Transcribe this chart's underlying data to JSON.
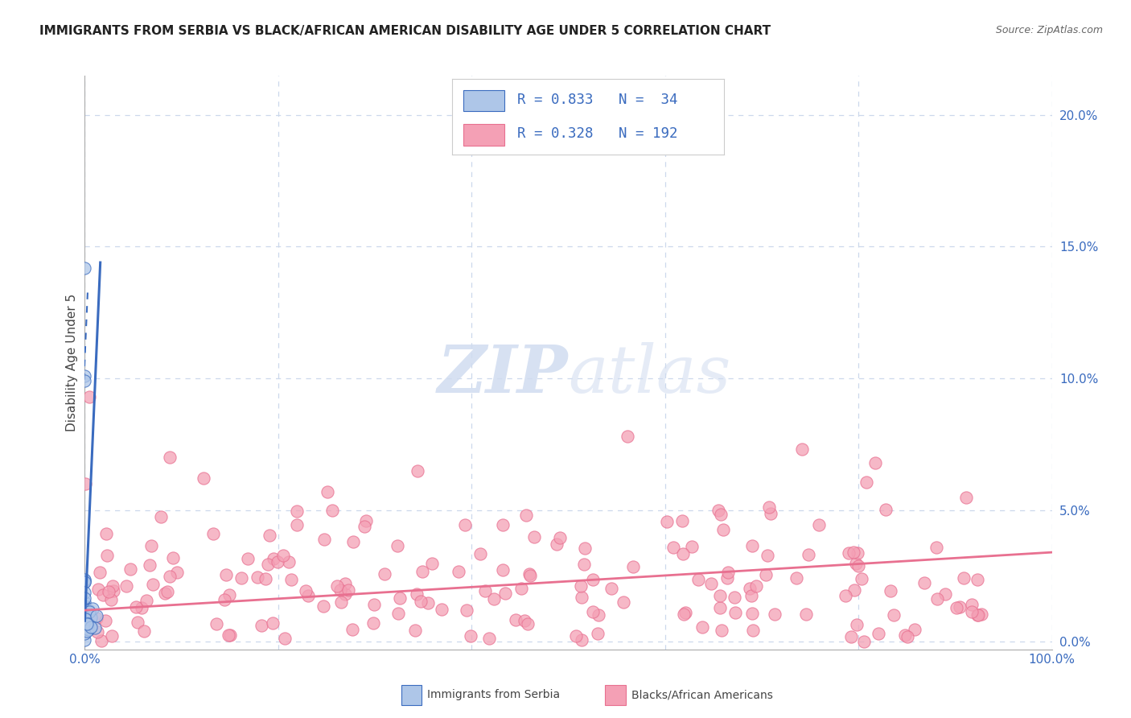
{
  "title": "IMMIGRANTS FROM SERBIA VS BLACK/AFRICAN AMERICAN DISABILITY AGE UNDER 5 CORRELATION CHART",
  "source": "Source: ZipAtlas.com",
  "ylabel": "Disability Age Under 5",
  "blue_R": 0.833,
  "blue_N": 34,
  "pink_R": 0.328,
  "pink_N": 192,
  "legend_label_blue": "Immigrants from Serbia",
  "legend_label_pink": "Blacks/African Americans",
  "blue_color": "#aec6e8",
  "pink_color": "#f4a0b5",
  "blue_line_color": "#3a6bbf",
  "pink_line_color": "#e87090",
  "label_color": "#3a6bbf",
  "background_color": "#ffffff",
  "grid_color": "#ccd8ec",
  "watermark_color": "#d0dcf0",
  "yaxis_right_values": [
    0.0,
    5.0,
    10.0,
    15.0,
    20.0
  ],
  "xlim": [
    0.0,
    100.0
  ],
  "ylim": [
    -0.3,
    21.5
  ]
}
